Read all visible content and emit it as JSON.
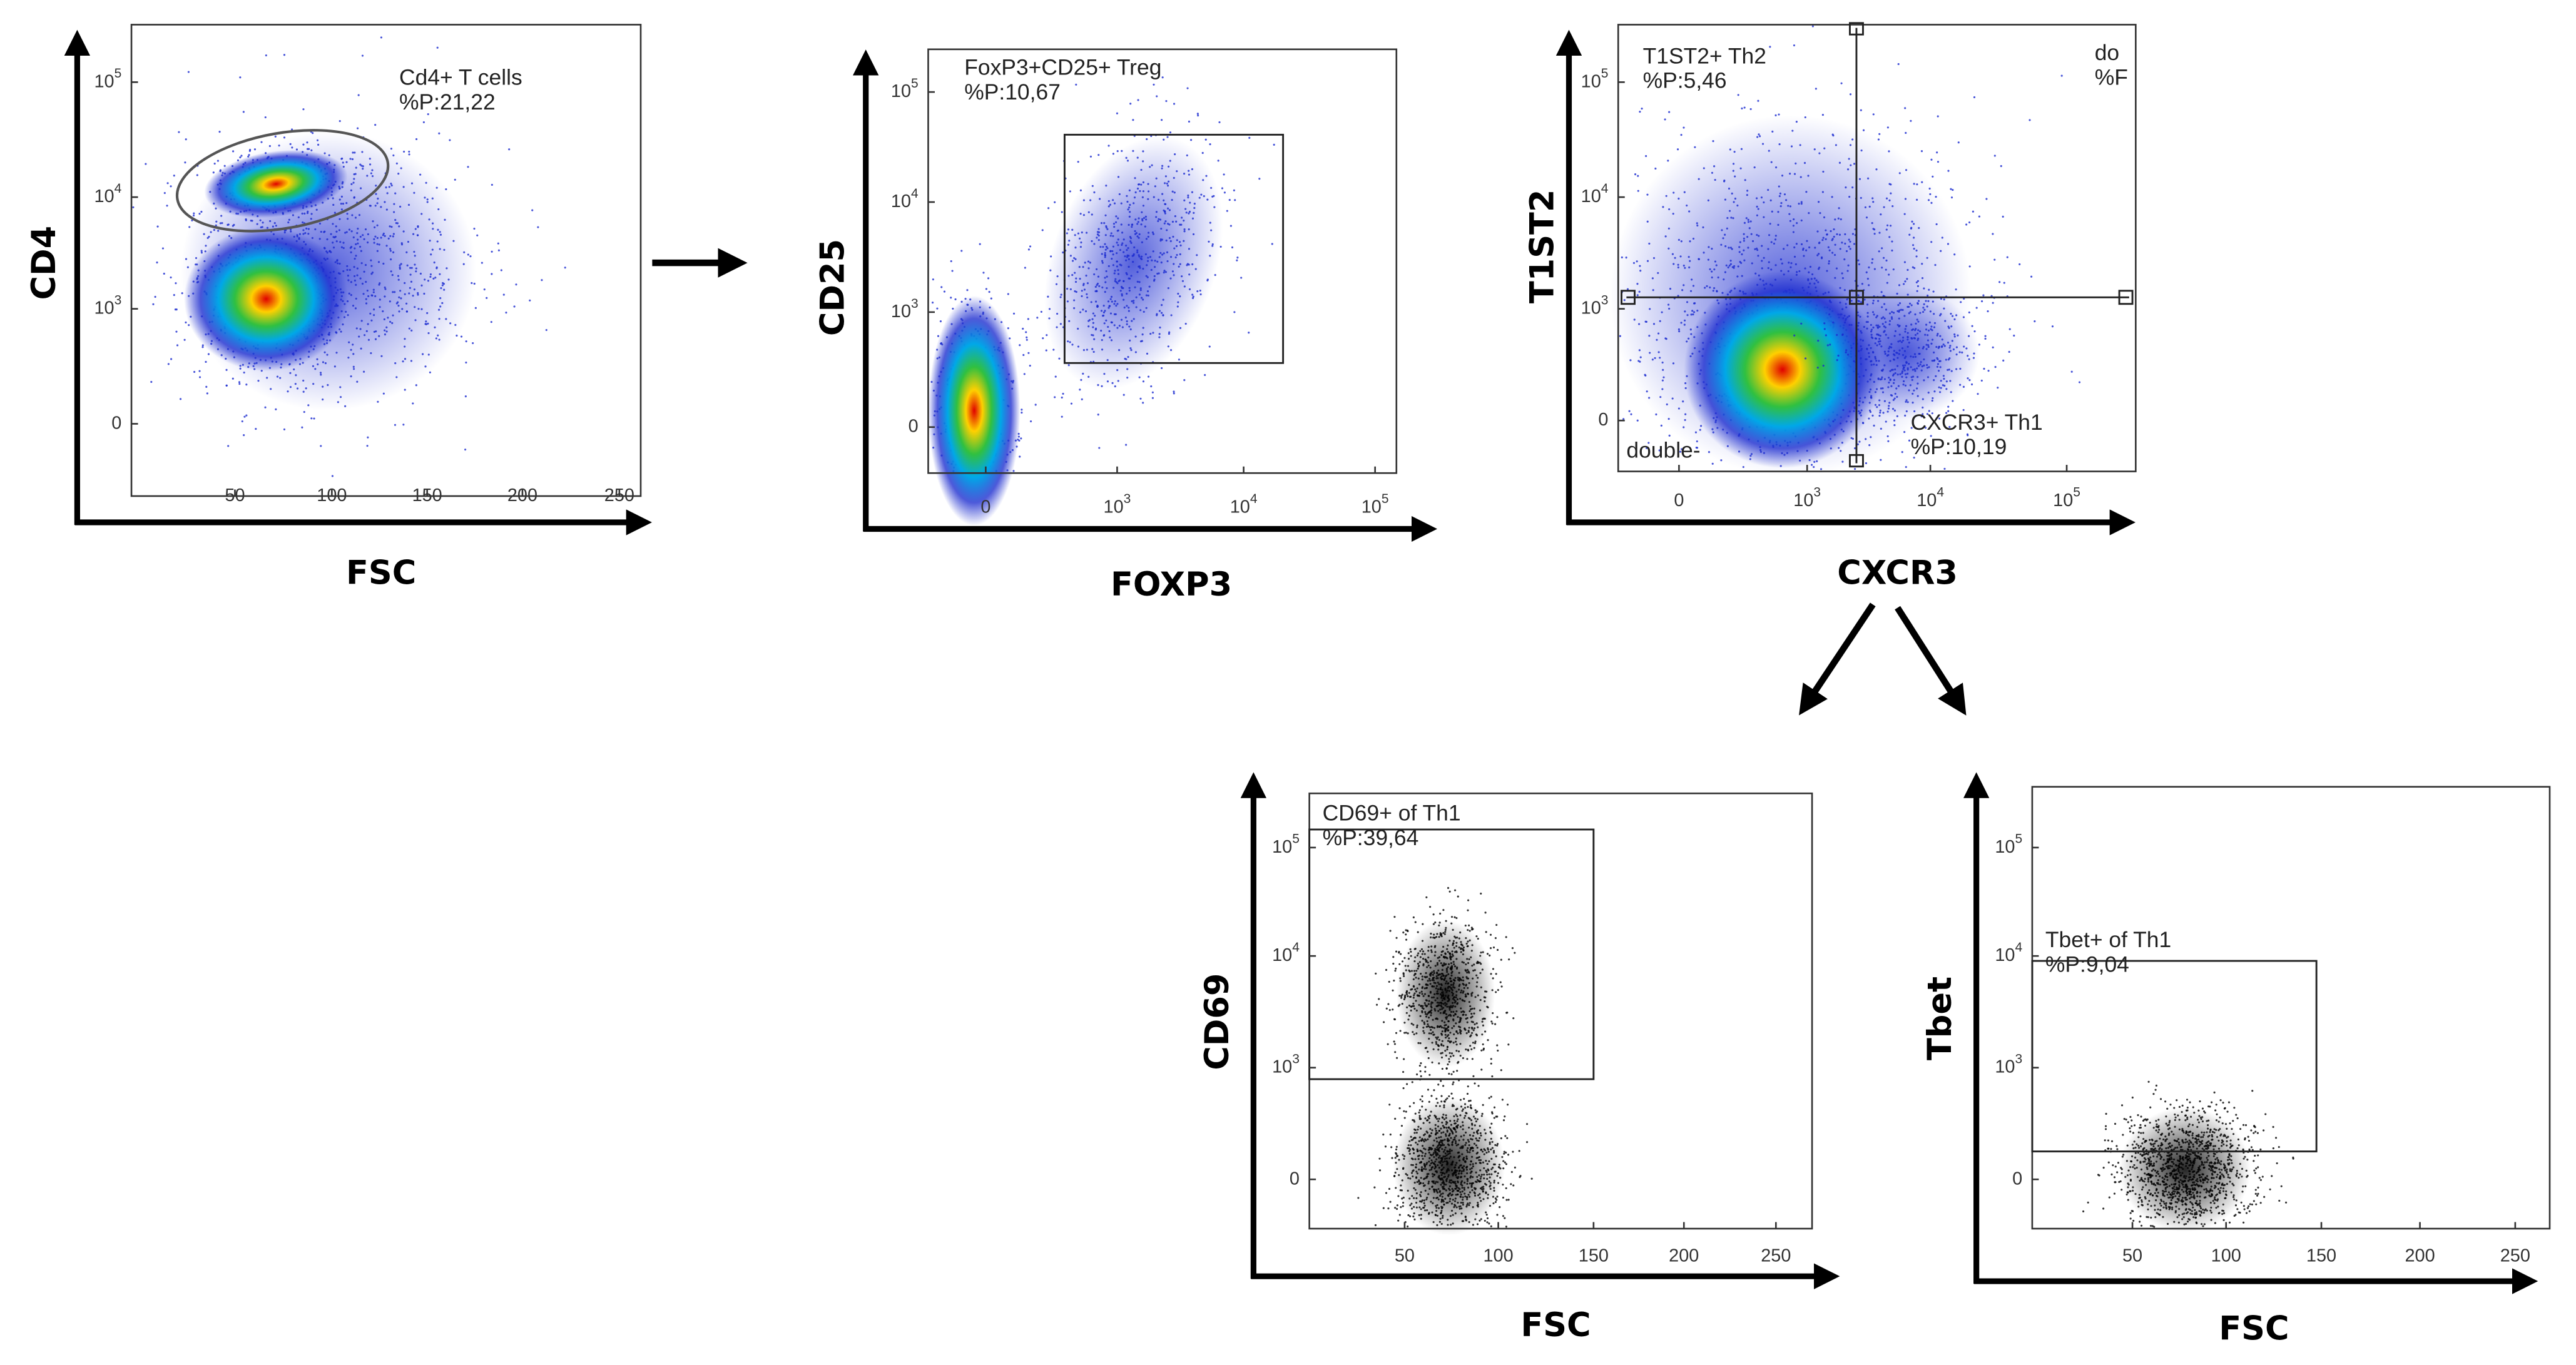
{
  "panels": [
    {
      "y_label": "CD4",
      "x_label": "FSC",
      "y_ticks": [
        {
          "base": "10",
          "sup": "5"
        },
        {
          "base": "10",
          "sup": "4"
        },
        {
          "base": "10",
          "sup": "3"
        },
        {
          "base": "0"
        }
      ],
      "x_ticks": [
        {
          "base": "50"
        },
        {
          "base": "100"
        },
        {
          "base": "150"
        },
        {
          "base": "200"
        },
        {
          "base": "250"
        }
      ],
      "gates": [
        {
          "lines": [
            "Cd4+ T cells",
            "%P:21,22"
          ]
        }
      ]
    },
    {
      "y_label": "CD25",
      "x_label": "FOXP3",
      "y_ticks": [
        {
          "base": "10",
          "sup": "5"
        },
        {
          "base": "10",
          "sup": "4"
        },
        {
          "base": "10",
          "sup": "3"
        },
        {
          "base": "0"
        }
      ],
      "x_ticks": [
        {
          "base": "0"
        },
        {
          "base": "10",
          "sup": "3"
        },
        {
          "base": "10",
          "sup": "4"
        },
        {
          "base": "10",
          "sup": "5"
        }
      ],
      "gates": [
        {
          "lines": [
            "FoxP3+CD25+ Treg",
            "%P:10,67"
          ]
        }
      ]
    },
    {
      "y_label": "T1ST2",
      "x_label": "CXCR3",
      "y_ticks": [
        {
          "base": "10",
          "sup": "5"
        },
        {
          "base": "10",
          "sup": "4"
        },
        {
          "base": "10",
          "sup": "3"
        },
        {
          "base": "0"
        }
      ],
      "x_ticks": [
        {
          "base": "0"
        },
        {
          "base": "10",
          "sup": "3"
        },
        {
          "base": "10",
          "sup": "4"
        },
        {
          "base": "10",
          "sup": "5"
        }
      ],
      "gates": [
        {
          "lines": [
            "T1ST2+ Th2",
            "%P:5,46"
          ]
        },
        {
          "lines": [
            "do",
            "%F"
          ]
        },
        {
          "lines": [
            "double-"
          ]
        },
        {
          "lines": [
            "CXCR3+ Th1",
            "%P:10,19"
          ]
        }
      ]
    },
    {
      "y_label": "CD69",
      "x_label": "FSC",
      "y_ticks": [
        {
          "base": "10",
          "sup": "5"
        },
        {
          "base": "10",
          "sup": "4"
        },
        {
          "base": "10",
          "sup": "3"
        },
        {
          "base": "0"
        }
      ],
      "x_ticks": [
        {
          "base": "50"
        },
        {
          "base": "100"
        },
        {
          "base": "150"
        },
        {
          "base": "200"
        },
        {
          "base": "250"
        }
      ],
      "gates": [
        {
          "lines": [
            "CD69+ of Th1",
            "%P:39,64"
          ]
        }
      ]
    },
    {
      "y_label": "Tbet",
      "x_label": "FSC",
      "y_ticks": [
        {
          "base": "10",
          "sup": "5"
        },
        {
          "base": "10",
          "sup": "4"
        },
        {
          "base": "10",
          "sup": "3"
        },
        {
          "base": "0"
        }
      ],
      "x_ticks": [
        {
          "base": "50"
        },
        {
          "base": "100"
        },
        {
          "base": "150"
        },
        {
          "base": "200"
        },
        {
          "base": "250"
        }
      ],
      "gates": [
        {
          "lines": [
            "Tbet+ of Th1",
            "%P:9,04"
          ]
        }
      ]
    }
  ]
}
